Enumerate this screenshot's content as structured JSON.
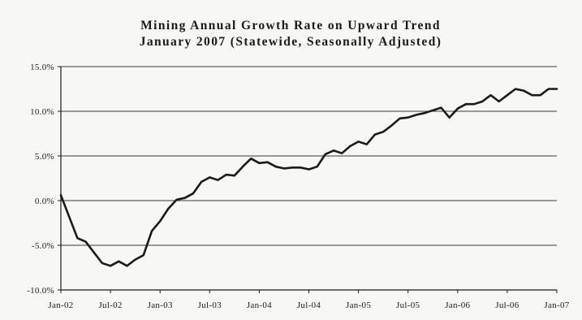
{
  "chart_data": {
    "type": "line",
    "title": "Mining Annual Growth Rate on Upward Trend",
    "subtitle": "January 2007 (Statewide, Seasonally Adjusted)",
    "xlabel": "",
    "ylabel": "",
    "ylim": [
      -10.0,
      15.0
    ],
    "y_ticks": [
      "-10.0%",
      "-5.0%",
      "0.0%",
      "5.0%",
      "10.0%",
      "15.0%"
    ],
    "y_tick_values": [
      -10,
      -5,
      0,
      5,
      10,
      15
    ],
    "x_ticks": [
      "Jan-02",
      "Jul-02",
      "Jan-03",
      "Jul-03",
      "Jan-04",
      "Jul-04",
      "Jan-05",
      "Jul-05",
      "Jan-06",
      "Jul-06",
      "Jan-07"
    ],
    "x_tick_months": [
      0,
      6,
      12,
      18,
      24,
      30,
      36,
      42,
      48,
      54,
      60
    ],
    "grid": "horizontal",
    "line_color": "#1a1a1a",
    "series": [
      {
        "x": [
          "Jan-02",
          "Feb-02",
          "Mar-02",
          "Apr-02",
          "May-02",
          "Jun-02",
          "Jul-02",
          "Aug-02",
          "Sep-02",
          "Oct-02",
          "Nov-02",
          "Dec-02",
          "Jan-03",
          "Feb-03",
          "Mar-03",
          "Apr-03",
          "May-03",
          "Jun-03",
          "Jul-03",
          "Aug-03",
          "Sep-03",
          "Oct-03",
          "Nov-03",
          "Dec-03",
          "Jan-04",
          "Feb-04",
          "Mar-04",
          "Apr-04",
          "May-04",
          "Jun-04",
          "Jul-04",
          "Aug-04",
          "Sep-04",
          "Oct-04",
          "Nov-04",
          "Dec-04",
          "Jan-05",
          "Feb-05",
          "Mar-05",
          "Apr-05",
          "May-05",
          "Jun-05",
          "Jul-05",
          "Aug-05",
          "Sep-05",
          "Oct-05",
          "Nov-05",
          "Dec-05",
          "Jan-06",
          "Feb-06",
          "Mar-06",
          "Apr-06",
          "May-06",
          "Jun-06",
          "Jul-06",
          "Aug-06",
          "Sep-06",
          "Oct-06",
          "Nov-06",
          "Dec-06",
          "Jan-07"
        ],
        "values": [
          0.6,
          -1.8,
          -4.2,
          -4.6,
          -5.8,
          -7.0,
          -7.3,
          -6.8,
          -7.3,
          -6.6,
          -6.1,
          -3.4,
          -2.3,
          -0.9,
          0.1,
          0.3,
          0.8,
          2.1,
          2.6,
          2.3,
          2.9,
          2.8,
          3.8,
          4.7,
          4.2,
          4.3,
          3.8,
          3.6,
          3.7,
          3.7,
          3.5,
          3.8,
          5.2,
          5.6,
          5.3,
          6.1,
          6.6,
          6.3,
          7.4,
          7.7,
          8.4,
          9.2,
          9.3,
          9.6,
          9.8,
          10.1,
          10.4,
          9.3,
          10.3,
          10.8,
          10.8,
          11.1,
          11.8,
          11.1,
          11.8,
          12.5,
          12.3,
          11.8,
          11.8,
          12.5,
          12.5
        ]
      }
    ]
  }
}
